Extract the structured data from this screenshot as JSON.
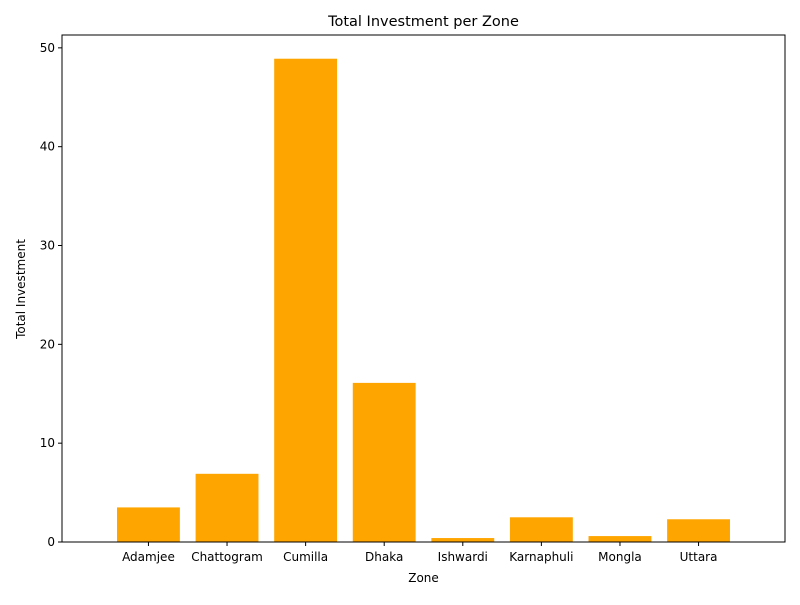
{
  "chart_data": {
    "type": "bar",
    "title": "Total Investment per Zone",
    "xlabel": "Zone",
    "ylabel": "Total Investment",
    "categories": [
      "Adamjee",
      "Chattogram",
      "Cumilla",
      "Dhaka",
      "Ishwardi",
      "Karnaphuli",
      "Mongla",
      "Uttara"
    ],
    "values": [
      3.5,
      6.9,
      48.9,
      16.1,
      0.4,
      2.5,
      0.6,
      2.3
    ],
    "ylim": [
      0,
      51.3
    ],
    "yticks": [
      0,
      10,
      20,
      30,
      40,
      50
    ],
    "bar_color": "#FFA500",
    "grid": false
  }
}
